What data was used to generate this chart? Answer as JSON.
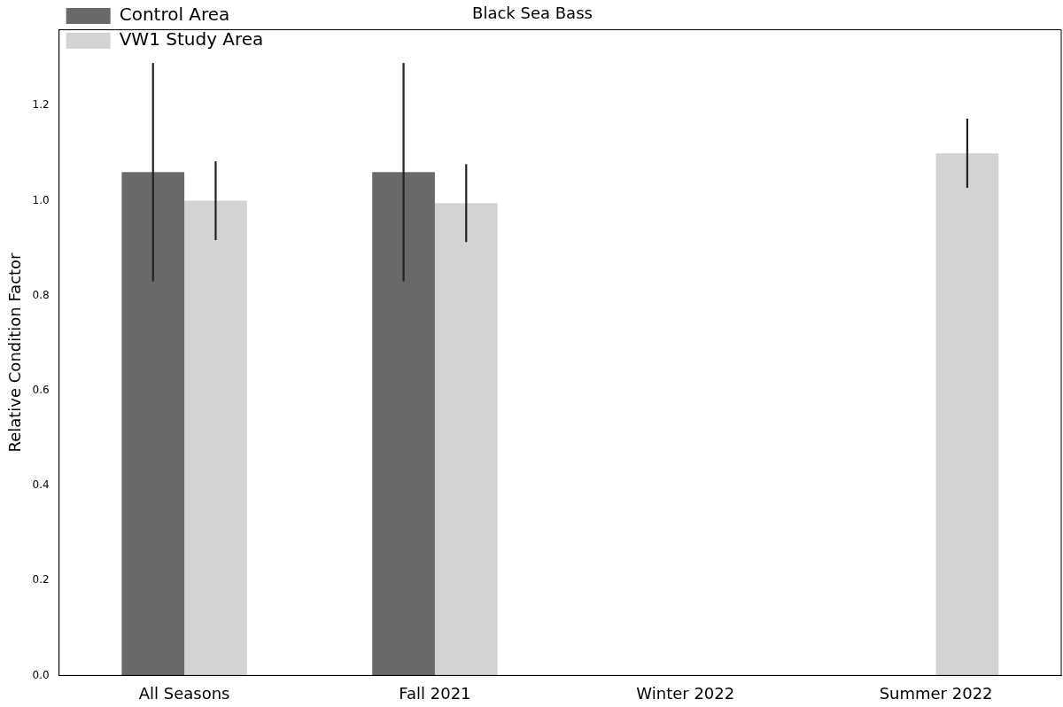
{
  "chart_data": {
    "type": "bar",
    "title": "Black Sea Bass",
    "ylabel": "Relative Condition Factor",
    "categories": [
      "All Seasons",
      "Fall 2021",
      "Winter 2022",
      "Summer 2022"
    ],
    "series": [
      {
        "name": "Control Area",
        "color": "#696969",
        "values": [
          1.06,
          1.06,
          null,
          null
        ],
        "errors": [
          0.23,
          0.23,
          null,
          null
        ]
      },
      {
        "name": "VW1 Study Area",
        "color": "#d3d3d3",
        "values": [
          1.0,
          0.995,
          null,
          1.1
        ],
        "errors": [
          0.083,
          0.082,
          null,
          0.073
        ]
      }
    ],
    "ylim": [
      0,
      1.36
    ],
    "yticks": [
      {
        "value": 0,
        "label": "0.0"
      },
      {
        "value": 0.2,
        "label": "0.2"
      },
      {
        "value": 0.4,
        "label": "0.4"
      },
      {
        "value": 0.6,
        "label": "0.6"
      },
      {
        "value": 0.8,
        "label": "0.8"
      },
      {
        "value": 1.0,
        "label": "1.0"
      },
      {
        "value": 1.2,
        "label": "1.2"
      }
    ],
    "grid": false,
    "legend": "top left"
  }
}
